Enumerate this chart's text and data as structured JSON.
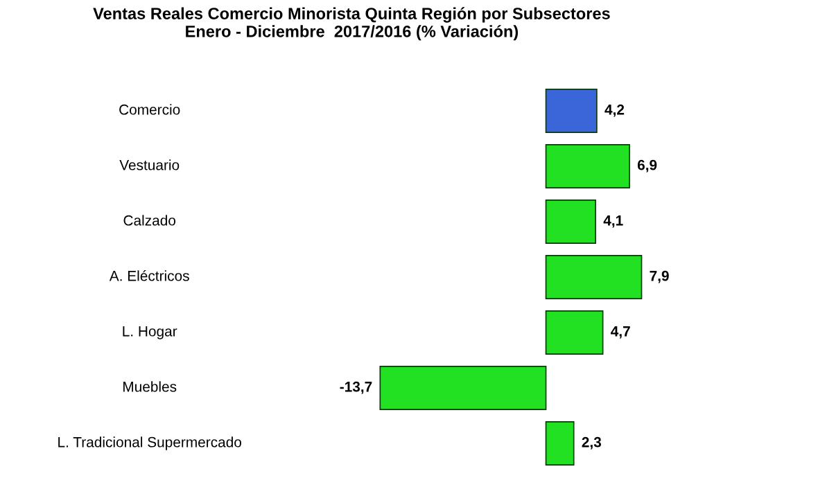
{
  "chart_data": {
    "type": "bar",
    "orientation": "horizontal",
    "title": "Ventas Reales Comercio Minorista Quinta Región por Subsectores\nEnero - Diciembre  2017/2016 (% Variación)",
    "categories": [
      "Comercio",
      "Vestuario",
      "Calzado",
      "A. Eléctricos",
      "L. Hogar",
      "Muebles",
      "L. Tradicional Supermercado"
    ],
    "values": [
      4.2,
      6.9,
      4.1,
      7.9,
      4.7,
      -13.7,
      2.3
    ],
    "colors": [
      "#3b66d9",
      "#22e022",
      "#22e022",
      "#22e022",
      "#22e022",
      "#22e022",
      "#22e022"
    ],
    "value_labels": [
      "4,2",
      "6,9",
      "4,1",
      "7,9",
      "4,7",
      "-13,7",
      "2,3"
    ],
    "legend": false
  }
}
